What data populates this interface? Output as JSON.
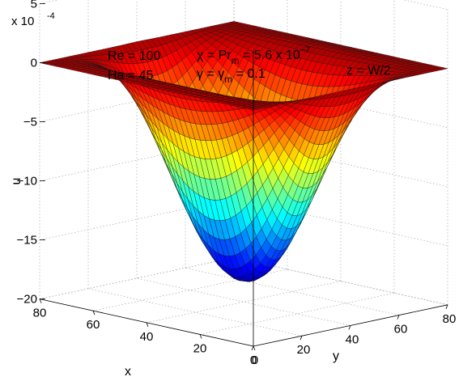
{
  "chart_data": {
    "type": "surface",
    "zlabel": "u",
    "xlabel": "x",
    "ylabel": "y",
    "exponent_base": "x 10",
    "exponent_power": "-4",
    "z_ticks": [
      "5",
      "0",
      "−5",
      "−10",
      "−15",
      "−20"
    ],
    "z_tick_values": [
      5,
      0,
      -5,
      -10,
      -15,
      -20
    ],
    "zlim": [
      -20,
      5
    ],
    "x_ticks": [
      "80",
      "60",
      "40",
      "20",
      "0"
    ],
    "x_tick_values": [
      80,
      60,
      40,
      20,
      0
    ],
    "y_ticks": [
      "0",
      "20",
      "40",
      "60",
      "80"
    ],
    "y_tick_values": [
      0,
      20,
      40,
      60,
      80
    ],
    "xlim": [
      0,
      80
    ],
    "ylim": [
      0,
      80
    ],
    "grid": true,
    "colormap": "jet",
    "surface_extrema": {
      "min_u_x1e4": -19,
      "max_u_x1e4": 0.8
    },
    "annotations": {
      "re": "Re = 100",
      "ha": "Ha = 45",
      "chi_prefix": "χ = Pr",
      "chi_sub": "m",
      "chi_value": " = 5.6 x 10",
      "chi_exp": "−7",
      "gamma_prefix": "γ = γ",
      "gamma_sub": "m",
      "gamma_value": " = 0.1",
      "z_plane": "z = W/2"
    }
  }
}
